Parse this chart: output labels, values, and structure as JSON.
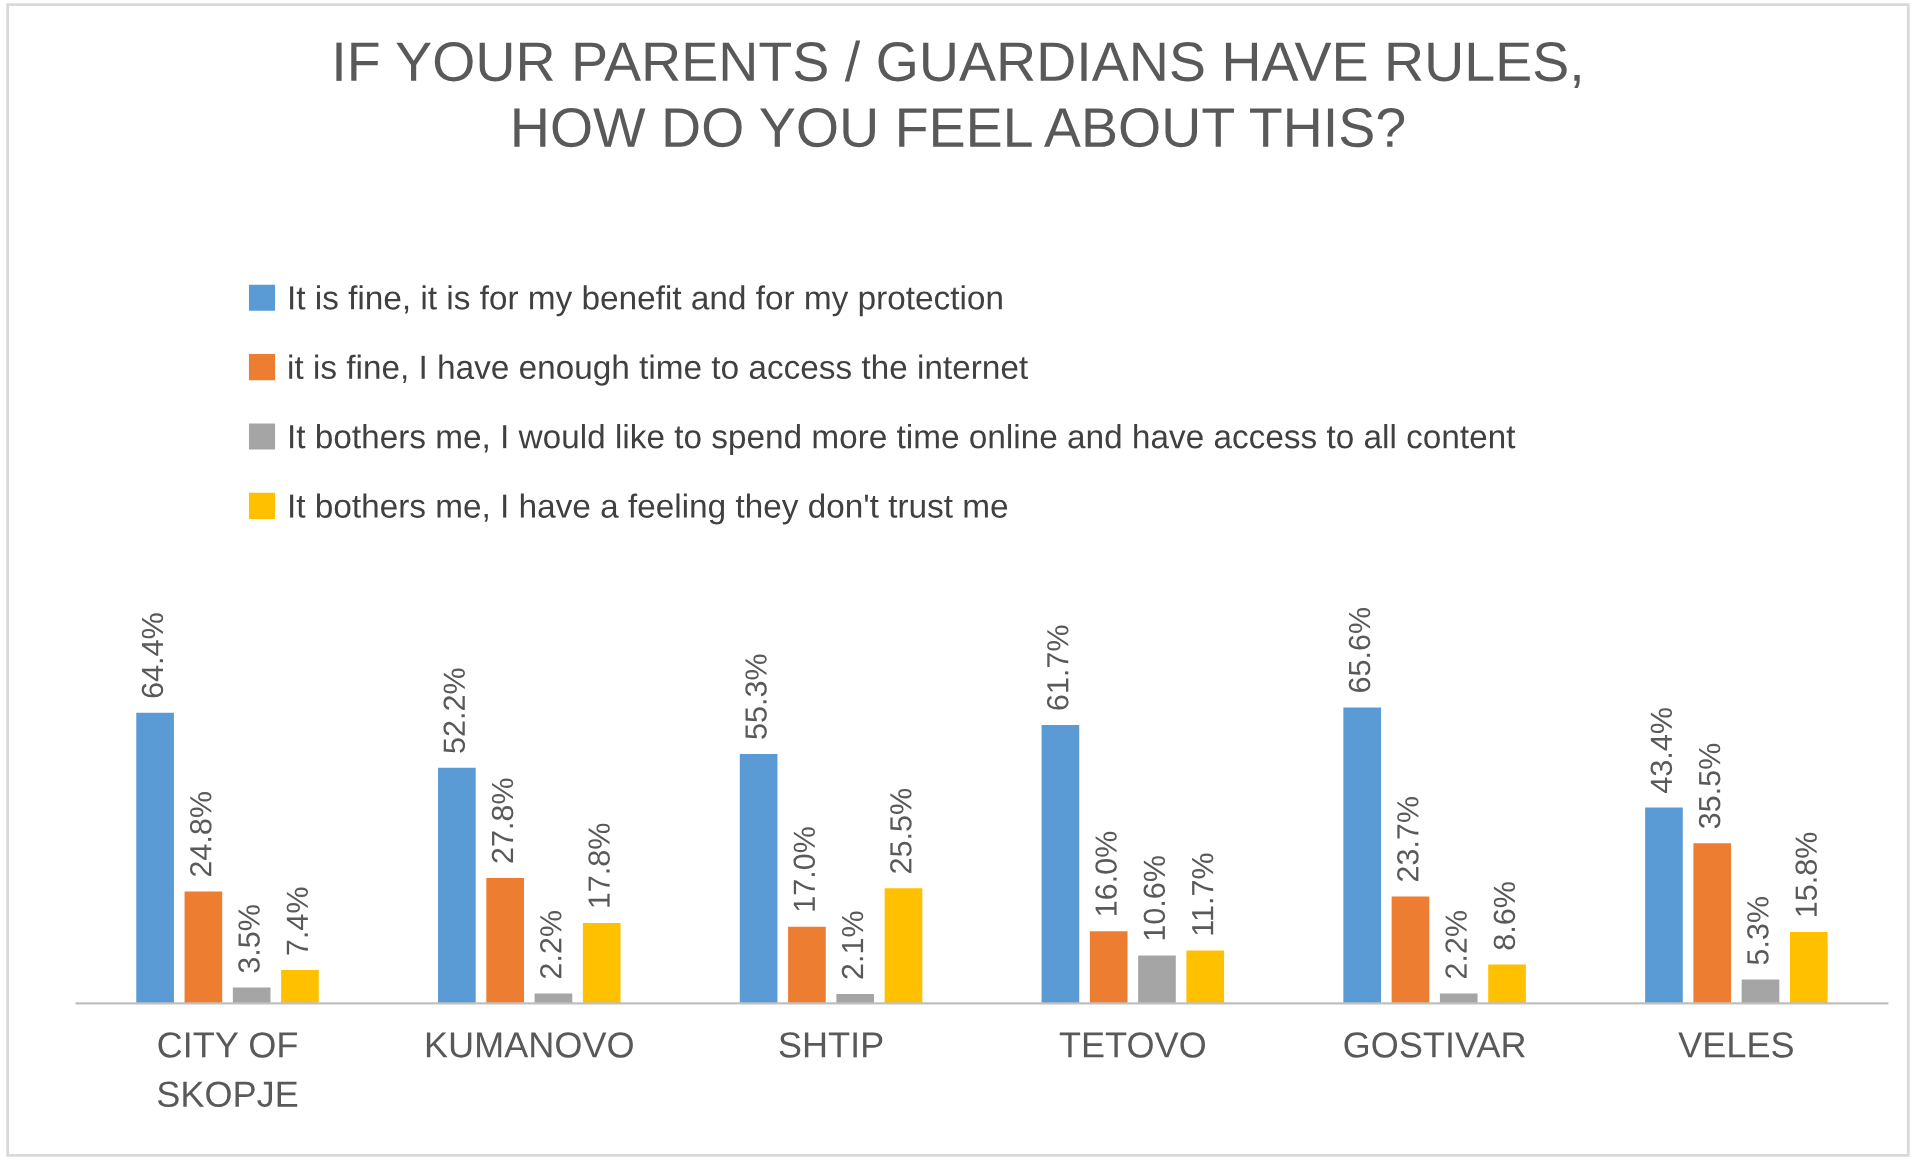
{
  "chart_data": {
    "type": "bar",
    "title": "IF YOUR PARENTS / GUARDIANS HAVE RULES,\nHOW DO YOU FEEL ABOUT THIS?",
    "categories": [
      "CITY OF SKOPJE",
      "KUMANOVO",
      "SHTIP",
      "TETOVO",
      "GOSTIVAR",
      "VELES"
    ],
    "series": [
      {
        "name": "It is fine, it is for my benefit and for my protection",
        "color": "#5b9bd5",
        "values": [
          64.4,
          52.2,
          55.3,
          61.7,
          65.6,
          43.4
        ],
        "value_labels": [
          "64.4%",
          "52.2%",
          "55.3%",
          "61.7%",
          "65.6%",
          "43.4%"
        ]
      },
      {
        "name": "it is fine, I have enough time to access the internet",
        "color": "#ed7d31",
        "values": [
          24.8,
          27.8,
          17.0,
          16.0,
          23.7,
          35.5
        ],
        "value_labels": [
          "24.8%",
          "27.8%",
          "17.0%",
          "16.0%",
          "23.7%",
          "35.5%"
        ]
      },
      {
        "name": "It bothers me, I would like to spend more time online and have access to all content",
        "color": "#a5a5a5",
        "values": [
          3.5,
          2.2,
          2.1,
          10.6,
          2.2,
          5.3
        ],
        "value_labels": [
          "3.5%",
          "2.2%",
          "2.1%",
          "10.6%",
          "2.2%",
          "5.3%"
        ]
      },
      {
        "name": "It bothers me, I have a feeling they don't trust me",
        "color": "#ffc000",
        "values": [
          7.4,
          17.8,
          25.5,
          11.7,
          8.6,
          15.8
        ],
        "value_labels": [
          "7.4%",
          "17.8%",
          "25.5%",
          "11.7%",
          "8.6%",
          "15.8%"
        ]
      }
    ],
    "legend": "top",
    "grid": false
  }
}
